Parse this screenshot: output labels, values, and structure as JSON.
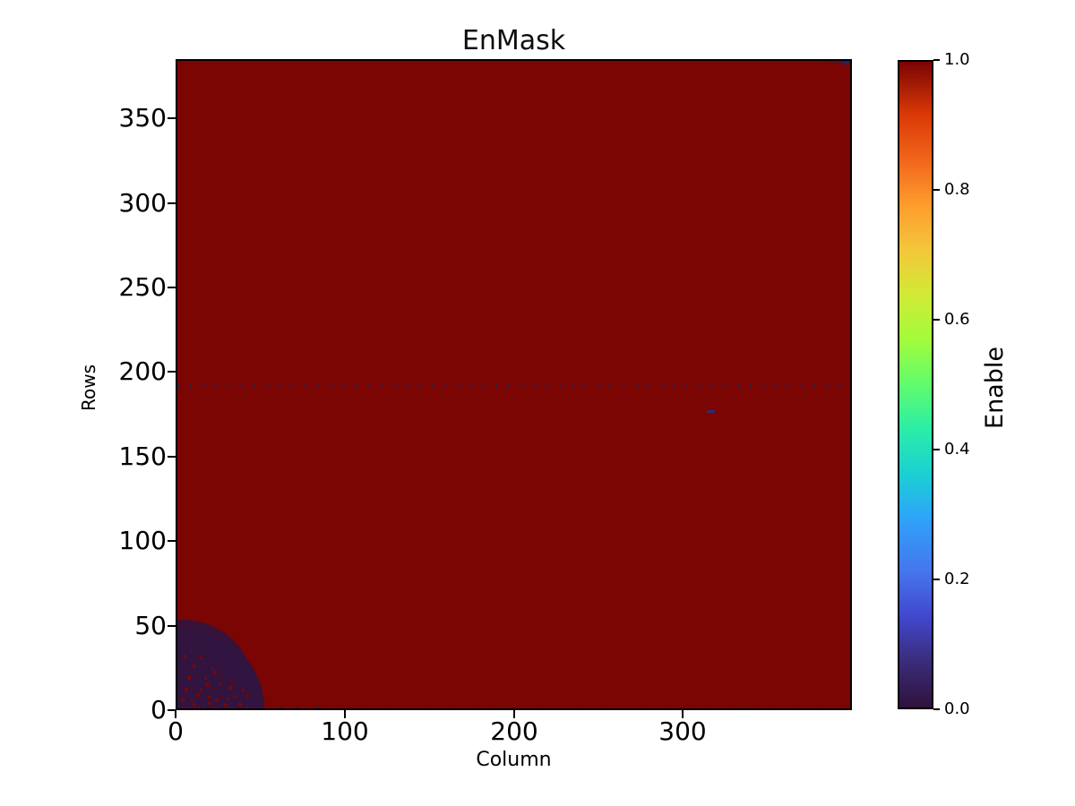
{
  "figure_title": "EnMask",
  "chart_data": {
    "type": "heatmap",
    "title": "EnMask",
    "xlabel": "Column",
    "ylabel": "Rows",
    "x_range": [
      0,
      400
    ],
    "y_range": [
      0,
      385
    ],
    "x_ticks": [
      0,
      100,
      200,
      300
    ],
    "y_ticks": [
      0,
      50,
      100,
      150,
      200,
      250,
      300,
      350
    ],
    "origin": "lower",
    "colormap": "turbo",
    "value_high": 1,
    "value_low": 0,
    "high_color": "#7a0503",
    "low_color": "#31143f",
    "colorbar": {
      "label": "Enable",
      "ticks": [
        "1.0",
        "0.8",
        "0.6",
        "0.4",
        "0.2",
        "0.0"
      ],
      "tick_values": [
        1.0,
        0.8,
        0.6,
        0.4,
        0.2,
        0.0
      ],
      "vmin": 0.0,
      "vmax": 1.0,
      "gradient_stops": [
        [
          0.0,
          "#30123b"
        ],
        [
          0.07,
          "#3a2c79"
        ],
        [
          0.14,
          "#4147cd"
        ],
        [
          0.21,
          "#4675ed"
        ],
        [
          0.29,
          "#2fa2fb"
        ],
        [
          0.36,
          "#1bcfd4"
        ],
        [
          0.43,
          "#2aeda8"
        ],
        [
          0.5,
          "#61fc6c"
        ],
        [
          0.57,
          "#a2fc3c"
        ],
        [
          0.64,
          "#d2e935"
        ],
        [
          0.71,
          "#f3c63a"
        ],
        [
          0.78,
          "#fe9b2d"
        ],
        [
          0.85,
          "#f1641a"
        ],
        [
          0.92,
          "#d93806"
        ],
        [
          1.0,
          "#7a0403"
        ]
      ]
    },
    "regions": {
      "background_value": 1,
      "disabled_blob": {
        "shape": "quarter-ellipse at origin",
        "extent_cols": 53,
        "extent_rows": 49,
        "value": 0,
        "speckles_value": 1,
        "speckles": [
          [
            3,
            2
          ],
          [
            6,
            1
          ],
          [
            9,
            3
          ],
          [
            12,
            2
          ],
          [
            15,
            1
          ],
          [
            18,
            4
          ],
          [
            21,
            2
          ],
          [
            24,
            1
          ],
          [
            27,
            3
          ],
          [
            30,
            2
          ],
          [
            33,
            1
          ],
          [
            36,
            3
          ],
          [
            40,
            2
          ],
          [
            44,
            1
          ],
          [
            2,
            6
          ],
          [
            5,
            8
          ],
          [
            8,
            6
          ],
          [
            11,
            9
          ],
          [
            14,
            7
          ],
          [
            18,
            8
          ],
          [
            22,
            6
          ],
          [
            26,
            9
          ],
          [
            29,
            7
          ],
          [
            33,
            8
          ],
          [
            37,
            6
          ],
          [
            41,
            9
          ],
          [
            4,
            12
          ],
          [
            8,
            14
          ],
          [
            13,
            12
          ],
          [
            17,
            15
          ],
          [
            21,
            13
          ],
          [
            25,
            16
          ],
          [
            30,
            13
          ],
          [
            34,
            15
          ],
          [
            38,
            12
          ],
          [
            6,
            19
          ],
          [
            11,
            21
          ],
          [
            16,
            19
          ],
          [
            21,
            22
          ],
          [
            26,
            20
          ],
          [
            31,
            18
          ],
          [
            9,
            26
          ],
          [
            15,
            28
          ],
          [
            20,
            25
          ],
          [
            3,
            32
          ],
          [
            8,
            35
          ],
          [
            13,
            31
          ]
        ]
      },
      "dotted_disabled_rows": {
        "rows": [
          0,
          192
        ],
        "dot_period_cols": 7.5,
        "dot_value": 0,
        "dot_color": "#3a1b4e"
      },
      "extra_bottom_dots": [
        [
          57,
          1
        ],
        [
          61,
          2
        ],
        [
          65,
          1
        ],
        [
          70,
          2
        ],
        [
          76,
          1
        ],
        [
          82,
          2
        ],
        [
          88,
          1
        ],
        [
          94,
          1
        ]
      ],
      "disabled_dash": {
        "col": 313,
        "row": 177,
        "width_cols": 5,
        "height_rows": 1.5,
        "color": "#2c2c72"
      },
      "top_right_mark": {
        "col": 393,
        "row": 383,
        "width_cols": 4.5,
        "height_rows": 3,
        "color": "#2b2060"
      },
      "top_right_smear": {
        "col": 385,
        "row": 384,
        "width_cols": 13,
        "height_rows": 2,
        "color": "#54101f"
      }
    }
  }
}
